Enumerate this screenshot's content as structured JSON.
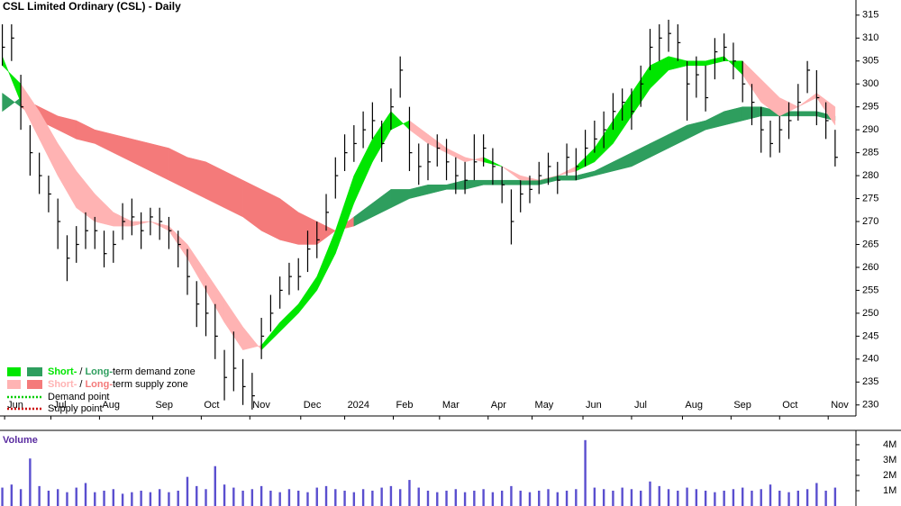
{
  "chart_data": [
    {
      "type": "ohlc",
      "title": "CSL Limited Ordinary (CSL) - Daily",
      "x": [
        0,
        4,
        8,
        12,
        16,
        20,
        24,
        28,
        32,
        36,
        40,
        44,
        48,
        52,
        56,
        60,
        64,
        68,
        72,
        76,
        80,
        84,
        88,
        92,
        96,
        100,
        104,
        108,
        112,
        116,
        120,
        124,
        128,
        132,
        136,
        140,
        144,
        148,
        152,
        156,
        160,
        164,
        168,
        172,
        176,
        180,
        184,
        188,
        192,
        196,
        200,
        204,
        208,
        212,
        216,
        220,
        224,
        228,
        232,
        236,
        240,
        244,
        248,
        252,
        256,
        260,
        264,
        268,
        272,
        276,
        280,
        284,
        288,
        292,
        296,
        300,
        304,
        308,
        312,
        316,
        320,
        324,
        328,
        332,
        336,
        340,
        344,
        348,
        352,
        356,
        360
      ],
      "high": [
        313,
        313,
        302,
        291,
        285,
        280,
        275,
        267,
        269,
        272,
        271,
        268,
        268,
        274,
        275,
        272,
        273,
        273,
        271,
        268,
        264,
        257,
        256,
        252,
        242,
        246,
        240,
        237,
        249,
        254,
        258,
        261,
        262,
        268,
        270,
        276,
        284,
        289,
        291,
        294,
        296,
        292,
        299,
        306,
        295,
        287,
        287,
        289,
        288,
        284,
        283,
        289,
        289,
        286,
        282,
        277,
        279,
        280,
        283,
        285,
        283,
        287,
        286,
        290,
        292,
        294,
        298,
        299,
        299,
        304,
        312,
        313,
        314,
        313,
        305,
        306,
        304,
        310,
        311,
        309,
        305,
        300,
        295,
        292,
        293,
        296,
        300,
        305,
        303,
        296,
        290
      ],
      "low": [
        304,
        305,
        290,
        280,
        276,
        272,
        264,
        257,
        261,
        264,
        264,
        260,
        261,
        266,
        267,
        264,
        267,
        266,
        264,
        260,
        254,
        247,
        245,
        240,
        231,
        233,
        230,
        229,
        240,
        246,
        251,
        254,
        255,
        259,
        262,
        268,
        275,
        281,
        283,
        286,
        288,
        283,
        290,
        297,
        281,
        278,
        279,
        282,
        279,
        276,
        276,
        279,
        282,
        278,
        274,
        265,
        272,
        274,
        276,
        278,
        276,
        280,
        279,
        282,
        285,
        286,
        290,
        292,
        290,
        295,
        303,
        305,
        307,
        305,
        292,
        297,
        294,
        301,
        305,
        301,
        296,
        291,
        285,
        284,
        285,
        288,
        292,
        298,
        291,
        288,
        282
      ],
      "close": [
        308,
        310,
        295,
        285,
        280,
        276,
        270,
        262,
        265,
        268,
        268,
        263,
        265,
        270,
        271,
        268,
        271,
        270,
        268,
        265,
        258,
        252,
        250,
        245,
        236,
        238,
        234,
        232,
        245,
        250,
        255,
        258,
        258,
        264,
        266,
        272,
        280,
        285,
        287,
        290,
        292,
        287,
        295,
        303,
        285,
        282,
        283,
        286,
        283,
        280,
        279,
        283,
        286,
        282,
        278,
        270,
        276,
        277,
        280,
        282,
        279,
        284,
        282,
        286,
        288,
        290,
        294,
        296,
        294,
        300,
        308,
        310,
        311,
        309,
        300,
        302,
        297,
        307,
        308,
        305,
        300,
        296,
        290,
        287,
        290,
        292,
        296,
        303,
        297,
        292,
        284
      ],
      "bar_color": "#000000",
      "zones": [
        {
          "x": [
            0,
            8,
            16,
            24,
            32,
            40,
            48,
            56,
            64,
            72,
            80,
            88,
            96,
            104,
            112,
            120,
            128,
            136,
            144,
            152,
            160,
            168,
            176,
            184,
            192,
            200,
            208,
            216,
            224,
            232,
            240,
            248,
            256,
            264,
            272,
            280,
            288,
            296,
            304,
            312,
            320,
            328,
            336,
            344,
            352,
            360
          ],
          "fast": [
            298,
            295,
            292,
            290,
            288,
            287,
            285,
            283,
            281,
            279,
            277,
            275,
            273,
            271,
            268,
            266,
            265,
            265,
            268,
            271,
            274,
            277,
            277,
            278,
            278,
            279,
            279,
            279,
            279,
            279,
            280,
            280,
            281,
            283,
            285,
            287,
            289,
            291,
            292,
            294,
            295,
            295,
            294,
            294,
            294,
            293
          ],
          "slow": [
            294,
            297,
            295,
            293,
            292,
            290,
            289,
            288,
            287,
            286,
            284,
            283,
            281,
            279,
            277,
            275,
            272,
            270,
            268,
            269,
            271,
            273,
            275,
            276,
            277,
            277,
            278,
            278,
            278,
            278,
            279,
            279,
            280,
            281,
            282,
            284,
            286,
            288,
            290,
            291,
            292,
            293,
            293,
            293,
            293,
            292
          ],
          "demand_color": "#2e9e5e",
          "supply_color": "#f47a7a"
        },
        {
          "x": [
            0,
            8,
            16,
            24,
            32,
            40,
            48,
            56,
            64,
            72,
            80,
            88,
            96,
            104,
            112,
            120,
            128,
            136,
            144,
            152,
            160,
            168,
            176,
            184,
            192,
            200,
            208,
            216,
            224,
            232,
            240,
            248,
            256,
            264,
            272,
            280,
            288,
            296,
            304,
            312,
            320,
            328,
            336,
            344,
            352,
            360
          ],
          "fast": [
            306,
            296,
            288,
            280,
            273,
            270,
            269,
            269,
            270,
            268,
            262,
            255,
            248,
            242,
            243,
            248,
            252,
            258,
            268,
            280,
            288,
            294,
            290,
            287,
            285,
            283,
            284,
            282,
            279,
            279,
            280,
            282,
            286,
            292,
            298,
            304,
            306,
            305,
            305,
            306,
            302,
            296,
            293,
            295,
            297,
            291
          ],
          "slow": [
            304,
            300,
            294,
            287,
            281,
            276,
            272,
            270,
            270,
            269,
            265,
            259,
            253,
            247,
            242,
            246,
            250,
            255,
            263,
            274,
            283,
            290,
            292,
            289,
            286,
            284,
            283,
            282,
            280,
            279,
            280,
            281,
            283,
            287,
            293,
            299,
            303,
            304,
            304,
            305,
            305,
            301,
            297,
            295,
            298,
            295
          ],
          "demand_color": "#00e600",
          "supply_color": "#ffb3b3"
        }
      ],
      "xlim": [
        -1,
        369
      ],
      "xticks": [
        {
          "value": 1,
          "label": "Jun"
        },
        {
          "value": 21,
          "label": "Jul"
        },
        {
          "value": 42,
          "label": "Aug"
        },
        {
          "value": 65,
          "label": "Sep"
        },
        {
          "value": 86,
          "label": "Oct"
        },
        {
          "value": 107,
          "label": "Nov"
        },
        {
          "value": 129,
          "label": "Dec"
        },
        {
          "value": 148,
          "label": "2024"
        },
        {
          "value": 169,
          "label": "Feb"
        },
        {
          "value": 189,
          "label": "Mar"
        },
        {
          "value": 210,
          "label": "Apr"
        },
        {
          "value": 229,
          "label": "May"
        },
        {
          "value": 251,
          "label": "Jun"
        },
        {
          "value": 272,
          "label": "Jul"
        },
        {
          "value": 294,
          "label": "Aug"
        },
        {
          "value": 315,
          "label": "Sep"
        },
        {
          "value": 336,
          "label": "Oct"
        },
        {
          "value": 357,
          "label": "Nov"
        }
      ],
      "ylim": [
        227.6,
        318.3
      ],
      "yticks": [
        230,
        235,
        240,
        245,
        250,
        255,
        260,
        265,
        270,
        275,
        280,
        285,
        290,
        295,
        300,
        305,
        310,
        315
      ],
      "legend": {
        "demand": {
          "short": "Short-",
          "sep": "/",
          "long": "Long-",
          "text": "term demand zone"
        },
        "supply": {
          "short": "Short-",
          "sep": "/",
          "long": "Long-",
          "text": "term supply zone"
        },
        "demand_point": "Demand point",
        "supply_point": "Supply point",
        "demand_point_color": "#00cc00",
        "supply_point_color": "#cc0000"
      }
    },
    {
      "type": "bar",
      "title": "Volume",
      "x": [
        0,
        4,
        8,
        12,
        16,
        20,
        24,
        28,
        32,
        36,
        40,
        44,
        48,
        52,
        56,
        60,
        64,
        68,
        72,
        76,
        80,
        84,
        88,
        92,
        96,
        100,
        104,
        108,
        112,
        116,
        120,
        124,
        128,
        132,
        136,
        140,
        144,
        148,
        152,
        156,
        160,
        164,
        168,
        172,
        176,
        180,
        184,
        188,
        192,
        196,
        200,
        204,
        208,
        212,
        216,
        220,
        224,
        228,
        232,
        236,
        240,
        244,
        248,
        252,
        256,
        260,
        264,
        268,
        272,
        276,
        280,
        284,
        288,
        292,
        296,
        300,
        304,
        308,
        312,
        316,
        320,
        324,
        328,
        332,
        336,
        340,
        344,
        348,
        352,
        356,
        360
      ],
      "values": [
        1200000,
        1400000,
        1100000,
        3100000,
        1300000,
        1000000,
        1100000,
        900000,
        1200000,
        1500000,
        900000,
        1000000,
        1100000,
        800000,
        900000,
        1000000,
        900000,
        1100000,
        900000,
        1000000,
        1900000,
        1300000,
        1100000,
        2600000,
        1400000,
        1200000,
        1000000,
        1100000,
        1300000,
        1000000,
        900000,
        1100000,
        1000000,
        900000,
        1200000,
        1300000,
        1100000,
        1000000,
        900000,
        1100000,
        1000000,
        1200000,
        1300000,
        1100000,
        1700000,
        1200000,
        1000000,
        900000,
        1000000,
        1100000,
        900000,
        1000000,
        1100000,
        900000,
        1000000,
        1300000,
        1000000,
        900000,
        1000000,
        1100000,
        900000,
        1000000,
        1100000,
        4300000,
        1200000,
        1100000,
        1000000,
        1200000,
        1100000,
        1000000,
        1600000,
        1300000,
        1100000,
        1000000,
        1200000,
        1100000,
        1000000,
        900000,
        1000000,
        1100000,
        1200000,
        1000000,
        1100000,
        1400000,
        1000000,
        900000,
        1000000,
        1100000,
        1500000,
        1000000,
        1200000
      ],
      "color": "#5a4fcf",
      "xlim": [
        -1,
        369
      ],
      "ylim": [
        0,
        4700000
      ],
      "yticks": [
        {
          "value": 1000000,
          "label": "1M"
        },
        {
          "value": 2000000,
          "label": "2M"
        },
        {
          "value": 3000000,
          "label": "3M"
        },
        {
          "value": 4000000,
          "label": "4M"
        }
      ]
    }
  ]
}
